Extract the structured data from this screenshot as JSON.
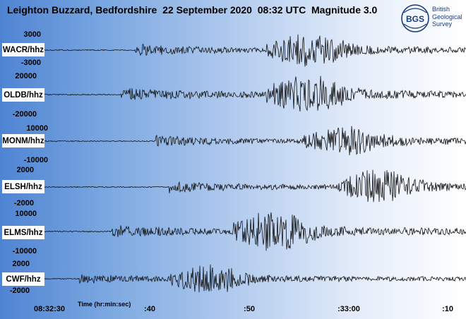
{
  "header": {
    "title": "Leighton Buzzard, Bedfordshire  22 September 2020  08:32 UTC  Magnitude 3.0"
  },
  "logo": {
    "abbr": "BGS",
    "name_lines": [
      "British",
      "Geological",
      "Survey"
    ],
    "color": "#1a3c7a"
  },
  "colors": {
    "trace": "#111111",
    "background_left": "#4f84d3",
    "background_right": "#ffffff"
  },
  "chart_data": {
    "type": "line",
    "title": "Leighton Buzzard, Bedfordshire  22 September 2020  08:32 UTC  Magnitude 3.0",
    "xlabel": "Time (hr:min:sec)",
    "x_tick_labels": [
      "08:32:30",
      ":40",
      ":50",
      ":33:00",
      ":10"
    ],
    "x_start": "08:32:30",
    "x_tick_interval_seconds": 10,
    "series": [
      {
        "name": "WACR/hhz",
        "ylim": [
          -3000,
          3000
        ],
        "y_tick_labels": [
          "3000",
          "-3000"
        ],
        "p_arrival_seconds": 8.6,
        "peak_seconds": 25.8,
        "peak_amplitude": 3000
      },
      {
        "name": "OLDB/hhz",
        "ylim": [
          -20000,
          20000
        ],
        "y_tick_labels": [
          "20000",
          "-20000"
        ],
        "p_arrival_seconds": 7.2,
        "peak_seconds": 25.6,
        "peak_amplitude": 20000
      },
      {
        "name": "MONM/hhz",
        "ylim": [
          -10000,
          10000
        ],
        "y_tick_labels": [
          "10000",
          "-10000"
        ],
        "p_arrival_seconds": 10.7,
        "peak_seconds": 29.4,
        "peak_amplitude": 8000
      },
      {
        "name": "ELSH/hhz",
        "ylim": [
          -2000,
          2000
        ],
        "y_tick_labels": [
          "2000",
          "-2000"
        ],
        "p_arrival_seconds": 12.0,
        "peak_seconds": 33.0,
        "peak_amplitude": 2000
      },
      {
        "name": "ELMS/hhz",
        "ylim": [
          -10000,
          10000
        ],
        "y_tick_labels": [
          "10000",
          "-10000"
        ],
        "p_arrival_seconds": 6.3,
        "peak_seconds": 22.3,
        "peak_amplitude": 10000
      },
      {
        "name": "CWF/hhz",
        "ylim": [
          -2000,
          2000
        ],
        "y_tick_labels": [
          "2000",
          "-2000"
        ],
        "p_arrival_seconds": 3.0,
        "peak_seconds": 15.8,
        "peak_amplitude": 2000
      }
    ]
  }
}
